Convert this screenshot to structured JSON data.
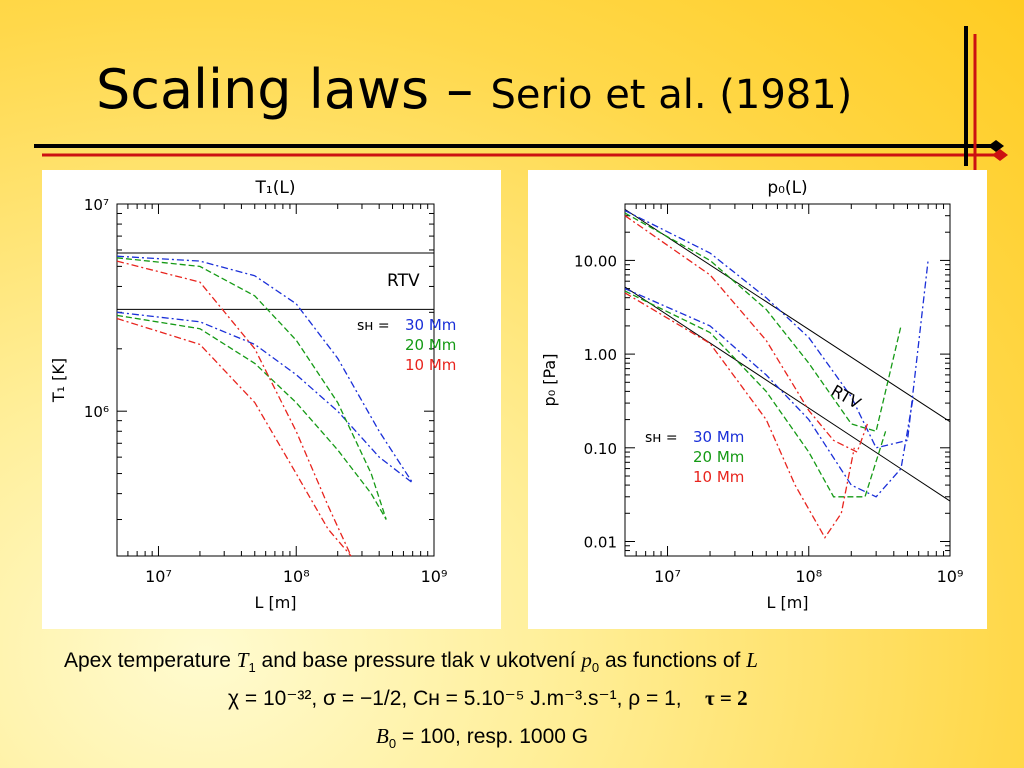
{
  "slide": {
    "title_main": "Scaling laws – ",
    "title_sub": "Serio et al. (1981)"
  },
  "chart_data": [
    {
      "type": "line",
      "title": "T₁(L)",
      "xlabel": "L [m]",
      "ylabel": "T₁ [K]",
      "x_scale": "log",
      "y_scale": "log",
      "xlim": [
        5000000.0,
        1000000000.0
      ],
      "ylim": [
        200000.0,
        10000000.0
      ],
      "x_ticks": [
        "10⁷",
        "10⁸",
        "10⁹"
      ],
      "y_ticks": [
        "10⁷",
        "10⁶"
      ],
      "annotations": [
        "RTV"
      ],
      "legend_prefix": "sʜ =",
      "legend": [
        "30 Mm",
        "20 Mm",
        "10 Mm"
      ],
      "colors": [
        "#1a2fd8",
        "#159a15",
        "#e8241e",
        "#000000"
      ],
      "series": [
        {
          "group": "RTV",
          "name": "RTV",
          "x": [
            5000000.0,
            1000000000.0
          ],
          "y": [
            5800000.0,
            5800000.0
          ]
        },
        {
          "group": "RTV",
          "name": "RTV",
          "x": [
            5000000.0,
            1000000000.0
          ],
          "y": [
            3100000.0,
            3100000.0
          ]
        },
        {
          "group": "30 Mm",
          "x": [
            5000000.0,
            20000000.0,
            50000000.0,
            100000000.0,
            200000000.0,
            400000000.0,
            700000000.0
          ],
          "y": [
            5600000.0,
            5300000.0,
            4500000.0,
            3300000.0,
            1800000.0,
            800000.0,
            450000.0
          ]
        },
        {
          "group": "30 Mm",
          "x": [
            5000000.0,
            20000000.0,
            50000000.0,
            100000000.0,
            200000000.0,
            400000000.0,
            700000000.0
          ],
          "y": [
            3000000.0,
            2700000.0,
            2100000.0,
            1500000.0,
            1000000.0,
            600000.0,
            450000.0
          ]
        },
        {
          "group": "20 Mm",
          "x": [
            5000000.0,
            20000000.0,
            50000000.0,
            100000000.0,
            200000000.0,
            350000000.0,
            450000000.0
          ],
          "y": [
            5500000.0,
            5000000.0,
            3600000.0,
            2200000.0,
            1100000.0,
            500000.0,
            300000.0
          ]
        },
        {
          "group": "20 Mm",
          "x": [
            5000000.0,
            20000000.0,
            50000000.0,
            100000000.0,
            200000000.0,
            350000000.0,
            450000000.0
          ],
          "y": [
            2900000.0,
            2500000.0,
            1700000.0,
            1100000.0,
            650000.0,
            400000.0,
            300000.0
          ]
        },
        {
          "group": "10 Mm",
          "x": [
            5000000.0,
            20000000.0,
            50000000.0,
            100000000.0,
            170000000.0,
            250000000.0
          ],
          "y": [
            5300000.0,
            4200000.0,
            2000000.0,
            800000.0,
            350000.0,
            200000.0
          ]
        },
        {
          "group": "10 Mm",
          "x": [
            5000000.0,
            20000000.0,
            50000000.0,
            100000000.0,
            170000000.0,
            250000000.0
          ],
          "y": [
            2800000.0,
            2100000.0,
            1100000.0,
            500000.0,
            270000.0,
            200000.0
          ]
        }
      ]
    },
    {
      "type": "line",
      "title": "p₀(L)",
      "xlabel": "L [m]",
      "ylabel": "p₀ [Pa]",
      "x_scale": "log",
      "y_scale": "log",
      "xlim": [
        5000000.0,
        1000000000.0
      ],
      "ylim": [
        0.007,
        40
      ],
      "x_ticks": [
        "10⁷",
        "10⁸",
        "10⁹"
      ],
      "y_ticks": [
        "10.00",
        "1.00",
        "0.10",
        "0.01"
      ],
      "annotations": [
        "RTV"
      ],
      "legend_prefix": "sʜ =",
      "legend": [
        "30 Mm",
        "20 Mm",
        "10 Mm"
      ],
      "colors": [
        "#1a2fd8",
        "#159a15",
        "#e8241e",
        "#000000"
      ],
      "series": [
        {
          "group": "RTV",
          "name": "RTV",
          "x": [
            5000000.0,
            1000000000.0
          ],
          "y": [
            35,
            0.19
          ]
        },
        {
          "group": "RTV",
          "name": "RTV",
          "x": [
            5000000.0,
            1000000000.0
          ],
          "y": [
            5.2,
            0.027
          ]
        },
        {
          "group": "30 Mm",
          "x": [
            5000000.0,
            20000000.0,
            50000000.0,
            100000000.0,
            200000000.0,
            300000000.0,
            500000000.0,
            700000000.0
          ],
          "y": [
            34,
            12,
            4,
            1.5,
            0.35,
            0.1,
            0.12,
            10
          ]
        },
        {
          "group": "30 Mm",
          "x": [
            5000000.0,
            20000000.0,
            50000000.0,
            100000000.0,
            200000000.0,
            300000000.0,
            450000000.0,
            550000000.0
          ],
          "y": [
            5,
            2,
            0.6,
            0.2,
            0.04,
            0.03,
            0.06,
            0.35
          ]
        },
        {
          "group": "20 Mm",
          "x": [
            5000000.0,
            20000000.0,
            50000000.0,
            100000000.0,
            200000000.0,
            300000000.0,
            450000000.0
          ],
          "y": [
            32,
            10,
            3,
            0.8,
            0.18,
            0.15,
            2
          ]
        },
        {
          "group": "20 Mm",
          "x": [
            5000000.0,
            20000000.0,
            50000000.0,
            100000000.0,
            150000000.0,
            250000000.0,
            350000000.0
          ],
          "y": [
            4.7,
            1.7,
            0.4,
            0.09,
            0.03,
            0.03,
            0.15
          ]
        },
        {
          "group": "10 Mm",
          "x": [
            5000000.0,
            20000000.0,
            50000000.0,
            100000000.0,
            150000000.0,
            220000000.0,
            260000000.0
          ],
          "y": [
            30,
            7,
            1.4,
            0.25,
            0.12,
            0.09,
            0.18
          ]
        },
        {
          "group": "10 Mm",
          "x": [
            5000000.0,
            20000000.0,
            50000000.0,
            80000000.0,
            130000000.0,
            170000000.0,
            210000000.0
          ],
          "y": [
            4.5,
            1.3,
            0.2,
            0.04,
            0.011,
            0.02,
            0.1
          ]
        }
      ]
    }
  ],
  "caption": {
    "line1_a": "Apex temperature ",
    "line1_T": "T",
    "line1_Tsub": "1",
    "line1_b": " and base pressure tlak v ukotvení ",
    "line1_p": "p",
    "line1_psub": "0",
    "line1_c": " as functions of ",
    "line1_L": "L",
    "line2": "χ = 10⁻³², σ = −1/2, Cʜ = 5.10⁻⁵  J.m⁻³.s⁻¹, ρ = 1,",
    "line2_tau": "τ = 2",
    "line3_B": "B",
    "line3_Bsub": "0",
    "line3": " = 100, resp. 1000 G"
  }
}
